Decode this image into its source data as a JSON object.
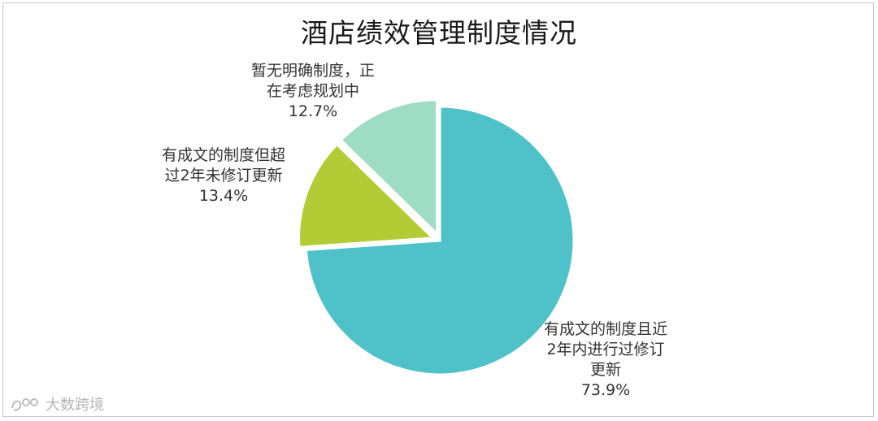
{
  "chart_data": {
    "type": "pie",
    "title": "酒店绩效管理制度情况",
    "slices": [
      {
        "label_lines": [
          "有成文的制度且近",
          "2年内进行过修订",
          "更新"
        ],
        "value": 73.9,
        "value_label": "73.9%",
        "color": "#4fc1c9"
      },
      {
        "label_lines": [
          "有成文的制度但超",
          "过2年未修订更新"
        ],
        "value": 13.4,
        "value_label": "13.4%",
        "color": "#b3cb34"
      },
      {
        "label_lines": [
          "暂无明确制度，正",
          "在考虑规划中"
        ],
        "value": 12.7,
        "value_label": "12.7%",
        "color": "#9fdcc6"
      }
    ]
  },
  "watermark": {
    "text": "大数跨境"
  }
}
